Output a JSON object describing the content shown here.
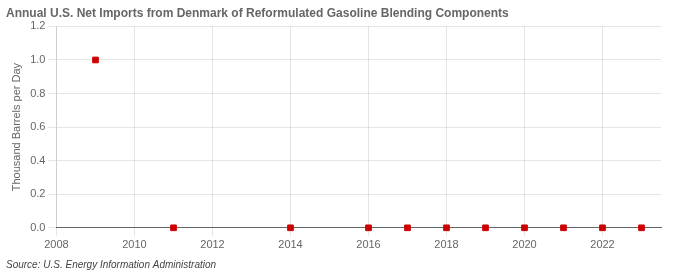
{
  "chart_data": {
    "type": "scatter",
    "title": "Annual U.S. Net Imports from Denmark of Reformulated Gasoline Blending Components",
    "y_label": "Thousand Barrels per Day",
    "annotation": "Source: U.S. Energy Information Administration",
    "x": [
      2009,
      2011,
      2014,
      2016,
      2017,
      2018,
      2019,
      2020,
      2021,
      2022,
      2023
    ],
    "values": [
      1.0,
      0.0,
      0.0,
      0.0,
      0.0,
      0.0,
      0.0,
      0.0,
      0.0,
      0.0,
      0.0
    ],
    "color": "#cc0000",
    "marker": "square",
    "xlim": [
      2008,
      2023.5
    ],
    "xticks": [
      2008,
      2010,
      2012,
      2014,
      2016,
      2018,
      2020,
      2022
    ],
    "ylim": [
      0.0,
      1.2
    ],
    "yticks": [
      {
        "value": 0.0,
        "label": "0.0"
      },
      0.2,
      0.4,
      0.6,
      0.8,
      {
        "value": 1.0,
        "label": "1.0"
      },
      1.2
    ],
    "grid": true
  }
}
